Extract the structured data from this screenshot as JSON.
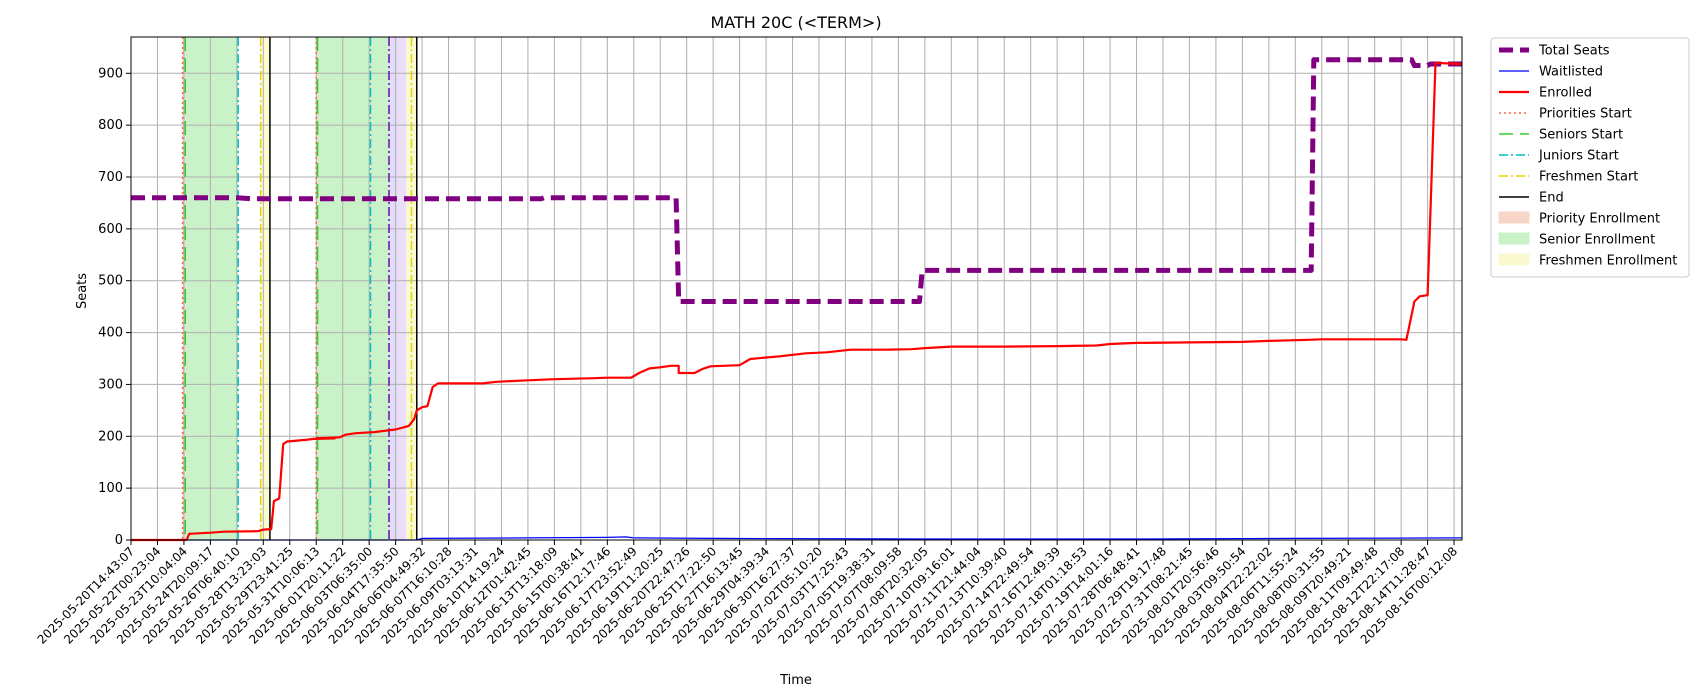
{
  "chart_data": {
    "type": "line",
    "title": "MATH 20C (<TERM>)",
    "xlabel": "Time",
    "ylabel": "Seats",
    "ylim": [
      0,
      970
    ],
    "yticks": [
      0,
      100,
      200,
      300,
      400,
      500,
      600,
      700,
      800,
      900
    ],
    "grid": true,
    "legend_position": "outside-right",
    "x_tick_labels": [
      "2025-05-20T14:43:07",
      "2025-05-22T00:23:04",
      "2025-05-23T10:04:04",
      "2025-05-24T20:09:17",
      "2025-05-26T06:40:10",
      "2025-05-28T13:23:03",
      "2025-05-29T23:41:25",
      "2025-05-31T10:06:13",
      "2025-06-01T20:11:22",
      "2025-06-03T06:35:00",
      "2025-06-04T17:35:50",
      "2025-06-06T04:49:32",
      "2025-06-07T16:10:28",
      "2025-06-09T03:13:31",
      "2025-06-10T14:19:24",
      "2025-06-12T01:42:45",
      "2025-06-13T13:18:09",
      "2025-06-15T00:38:41",
      "2025-06-16T12:17:46",
      "2025-06-17T23:52:49",
      "2025-06-19T11:20:25",
      "2025-06-20T22:47:26",
      "2025-06-25T17:22:50",
      "2025-06-27T16:13:45",
      "2025-06-29T04:39:34",
      "2025-06-30T16:27:37",
      "2025-07-02T05:10:20",
      "2025-07-03T17:25:43",
      "2025-07-05T19:38:31",
      "2025-07-07T08:09:58",
      "2025-07-08T20:32:05",
      "2025-07-10T09:16:01",
      "2025-07-11T21:44:04",
      "2025-07-13T10:39:40",
      "2025-07-14T22:49:54",
      "2025-07-16T12:49:39",
      "2025-07-18T01:18:53",
      "2025-07-19T14:01:16",
      "2025-07-28T06:48:41",
      "2025-07-29T19:17:48",
      "2025-07-31T08:21:45",
      "2025-08-01T20:56:46",
      "2025-08-03T09:50:54",
      "2025-08-04T22:22:02",
      "2025-08-06T11:55:24",
      "2025-08-08T00:31:55",
      "2025-08-09T20:49:21",
      "2025-08-11T09:49:48",
      "2025-08-12T22:17:08",
      "2025-08-14T11:28:47",
      "2025-08-16T00:12:08"
    ],
    "series": [
      {
        "name": "Total Seats",
        "color": "#800080",
        "style": "dashed",
        "points": [
          [
            0,
            660
          ],
          [
            4,
            660
          ],
          [
            4.6,
            658
          ],
          [
            15.5,
            658
          ],
          [
            15.6,
            660
          ],
          [
            20.6,
            660
          ],
          [
            20.7,
            460
          ],
          [
            29.8,
            460
          ],
          [
            29.9,
            520
          ],
          [
            44.6,
            520
          ],
          [
            44.7,
            926
          ],
          [
            48.4,
            926
          ],
          [
            48.5,
            915
          ],
          [
            49,
            915
          ],
          [
            49.1,
            918
          ],
          [
            50.3,
            918
          ]
        ]
      },
      {
        "name": "Waitlisted",
        "color": "#0000ff",
        "style": "solid",
        "points": [
          [
            0,
            0
          ],
          [
            10.8,
            0
          ],
          [
            11,
            3
          ],
          [
            15,
            4
          ],
          [
            18,
            5
          ],
          [
            18.7,
            6
          ],
          [
            19,
            4
          ],
          [
            22,
            3
          ],
          [
            30,
            2
          ],
          [
            38,
            2
          ],
          [
            44,
            3
          ],
          [
            50.3,
            4
          ]
        ]
      },
      {
        "name": "Enrolled",
        "color": "#ff0000",
        "style": "solid",
        "points": [
          [
            0,
            0
          ],
          [
            2.1,
            0
          ],
          [
            2.2,
            12
          ],
          [
            3,
            14
          ],
          [
            3.5,
            16
          ],
          [
            4.8,
            17
          ],
          [
            5,
            20
          ],
          [
            5.3,
            21
          ],
          [
            5.4,
            75
          ],
          [
            5.6,
            80
          ],
          [
            5.75,
            185
          ],
          [
            5.9,
            190
          ],
          [
            6.6,
            193
          ],
          [
            6.9,
            195
          ],
          [
            7.7,
            196
          ],
          [
            7,
            196
          ],
          [
            7.9,
            198
          ],
          [
            8.1,
            203
          ],
          [
            8.5,
            206
          ],
          [
            9.2,
            208
          ],
          [
            9.8,
            212
          ],
          [
            10,
            213
          ],
          [
            10.5,
            220
          ],
          [
            10.7,
            233
          ],
          [
            10.8,
            250
          ],
          [
            11,
            256
          ],
          [
            11.2,
            258
          ],
          [
            11.4,
            295
          ],
          [
            11.6,
            302
          ],
          [
            11.9,
            302
          ],
          [
            12.2,
            302
          ],
          [
            13.3,
            302
          ],
          [
            13.8,
            305
          ],
          [
            15,
            308
          ],
          [
            16,
            310
          ],
          [
            17.5,
            312
          ],
          [
            18,
            313
          ],
          [
            18.9,
            313
          ],
          [
            19.2,
            322
          ],
          [
            19.6,
            331
          ],
          [
            20,
            333
          ],
          [
            20.4,
            336
          ],
          [
            20.7,
            336
          ],
          [
            20.7,
            322
          ],
          [
            21.3,
            322
          ],
          [
            21.6,
            330
          ],
          [
            21.9,
            335
          ],
          [
            23,
            337
          ],
          [
            23.4,
            349
          ],
          [
            24,
            352
          ],
          [
            24.5,
            354
          ],
          [
            25.5,
            360
          ],
          [
            26.3,
            362
          ],
          [
            27.2,
            367
          ],
          [
            28.5,
            367
          ],
          [
            29.5,
            368
          ],
          [
            30,
            370
          ],
          [
            31,
            373
          ],
          [
            33,
            373
          ],
          [
            35,
            374
          ],
          [
            36.5,
            375
          ],
          [
            37,
            378
          ],
          [
            38,
            380
          ],
          [
            40,
            381
          ],
          [
            42,
            382
          ],
          [
            43,
            384
          ],
          [
            44.5,
            386
          ],
          [
            45,
            387
          ],
          [
            48,
            387
          ],
          [
            48.2,
            386
          ],
          [
            48.5,
            460
          ],
          [
            48.7,
            470
          ],
          [
            49,
            472
          ],
          [
            49.3,
            920
          ],
          [
            50.3,
            918
          ]
        ]
      },
      {
        "name": "Priorities Start",
        "color": "#ff6347",
        "style": "dotted",
        "vlines": [
          1.95,
          7.0
        ]
      },
      {
        "name": "Seniors Start",
        "color": "#32cd32",
        "style": "dashed",
        "vlines": [
          2.05,
          7.05
        ]
      },
      {
        "name": "Juniors Start",
        "color": "#00bfbf",
        "style": "dashdot",
        "vlines": [
          4.05,
          9.05
        ]
      },
      {
        "name": "Freshmen Start",
        "color": "#e6d200",
        "style": "dashdot",
        "vlines": [
          4.9,
          10.6
        ]
      },
      {
        "name": "End",
        "color": "#000000",
        "style": "solid",
        "vlines": [
          5.25,
          10.8
        ]
      },
      {
        "name": "Priority Enrollment",
        "color": "#f4b59a",
        "style": "fill"
      },
      {
        "name": "Senior Enrollment",
        "color": "#9ee89a",
        "style": "fill"
      },
      {
        "name": "Freshmen Enrollment",
        "color": "#f4f5a8",
        "style": "fill"
      }
    ],
    "shaded_regions": [
      {
        "from": 1.95,
        "to": 2.05,
        "color": "#f4b59a"
      },
      {
        "from": 2.05,
        "to": 4.05,
        "color": "#9ee89a"
      },
      {
        "from": 4.9,
        "to": 5.25,
        "color": "#f4f5a8"
      },
      {
        "from": 7.0,
        "to": 7.05,
        "color": "#f4b59a"
      },
      {
        "from": 7.05,
        "to": 9.75,
        "color": "#9ee89a"
      },
      {
        "from": 9.75,
        "to": 10.05,
        "color": "#c8c0f5"
      },
      {
        "from": 10.05,
        "to": 10.4,
        "color": "#d8c2f2"
      },
      {
        "from": 10.4,
        "to": 10.8,
        "color": "#f4f5a8"
      }
    ],
    "extra_vlines": [
      {
        "x": 9.75,
        "color": "#6a0dad",
        "style": "dashdot"
      }
    ]
  }
}
